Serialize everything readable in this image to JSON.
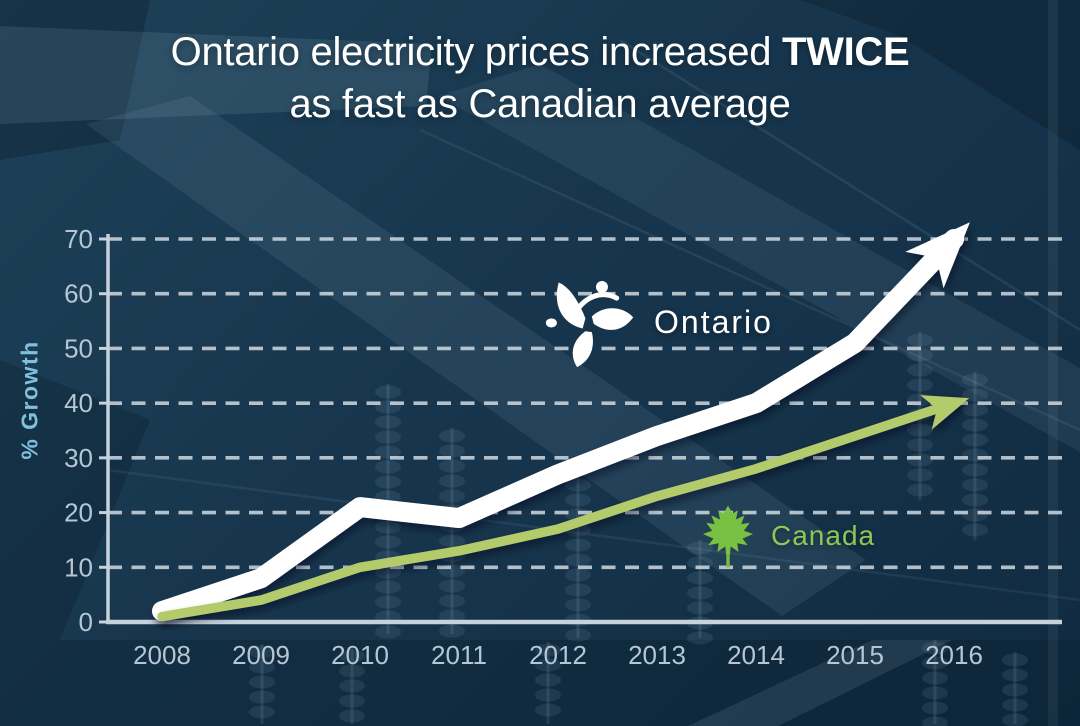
{
  "ui": {
    "title": {
      "line1_regular": "Ontario electricity prices increased ",
      "line1_bold": "TWICE",
      "line2": "as fast as Canadian average"
    }
  },
  "colors": {
    "background": "#16354d",
    "title_text": "#ffffff",
    "axis": "#c6d2dc",
    "tick_text": "#b6c6d3",
    "gridline": "#dbe4ea",
    "y_axis_label_text": "#7fc0dc",
    "ontario_line": "#ffffff",
    "canada_line": "#b4cb6c",
    "canada_label_text": "#8cc855",
    "maple_leaf_green": "#79c143"
  },
  "chart_data": {
    "type": "line",
    "title": "Ontario electricity prices increased TWICE as fast as Canadian average",
    "xlabel": "",
    "ylabel": "% Growth",
    "x": [
      "2008",
      "2009",
      "2010",
      "2011",
      "2012",
      "2013",
      "2014",
      "2015",
      "2016"
    ],
    "y_ticks": [
      0,
      10,
      20,
      30,
      40,
      50,
      60,
      70
    ],
    "ylim": [
      0,
      70
    ],
    "grid": "horizontal dashed lines",
    "legend": "inline labels with icons next to each line",
    "series": [
      {
        "name": "Ontario",
        "icon": "trillium-icon",
        "color": "#ffffff",
        "values": [
          2,
          8,
          21,
          19,
          27,
          34,
          40,
          51,
          70
        ],
        "arrow_end": true
      },
      {
        "name": "Canada",
        "icon": "maple-leaf-icon",
        "color": "#b4cb6c",
        "values": [
          1,
          4,
          10,
          13,
          17,
          23,
          28,
          34,
          40
        ],
        "arrow_end": true
      }
    ]
  }
}
